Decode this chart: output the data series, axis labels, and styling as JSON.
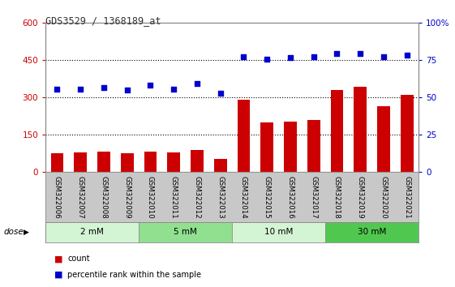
{
  "title": "GDS3529 / 1368189_at",
  "samples": [
    "GSM322006",
    "GSM322007",
    "GSM322008",
    "GSM322009",
    "GSM322010",
    "GSM322011",
    "GSM322012",
    "GSM322013",
    "GSM322014",
    "GSM322015",
    "GSM322016",
    "GSM322017",
    "GSM322018",
    "GSM322019",
    "GSM322020",
    "GSM322021"
  ],
  "counts": [
    75,
    80,
    82,
    77,
    83,
    79,
    88,
    55,
    290,
    200,
    205,
    210,
    330,
    345,
    265,
    310
  ],
  "percentile_left": [
    335,
    335,
    340,
    330,
    350,
    335,
    355,
    318,
    465,
    455,
    460,
    465,
    478,
    478,
    463,
    472
  ],
  "dose_groups": [
    {
      "label": "2 mM",
      "start": 0,
      "end": 3,
      "color": "#d4f5d4"
    },
    {
      "label": "5 mM",
      "start": 4,
      "end": 7,
      "color": "#90e090"
    },
    {
      "label": "10 mM",
      "start": 8,
      "end": 11,
      "color": "#d4f5d4"
    },
    {
      "label": "30 mM",
      "start": 12,
      "end": 15,
      "color": "#50c850"
    }
  ],
  "bar_color": "#cc0000",
  "dot_color": "#0000cc",
  "left_ylim": [
    0,
    600
  ],
  "right_ylim": [
    0,
    100
  ],
  "left_yticks": [
    0,
    150,
    300,
    450,
    600
  ],
  "right_yticks": [
    0,
    25,
    50,
    75,
    100
  ],
  "right_yticklabels": [
    "0",
    "25",
    "50",
    "75",
    "100%"
  ],
  "plot_bg_color": "#ffffff",
  "xlabels_bg_color": "#c8c8c8",
  "legend_count_color": "#cc0000",
  "legend_dot_color": "#0000cc",
  "legend_count_label": "count",
  "legend_dot_label": "percentile rank within the sample",
  "dose_label": "dose",
  "title_color": "#333333",
  "left_tick_color": "#cc0000",
  "right_tick_color": "#0000cc",
  "grid_yticks": [
    150,
    300,
    450
  ]
}
